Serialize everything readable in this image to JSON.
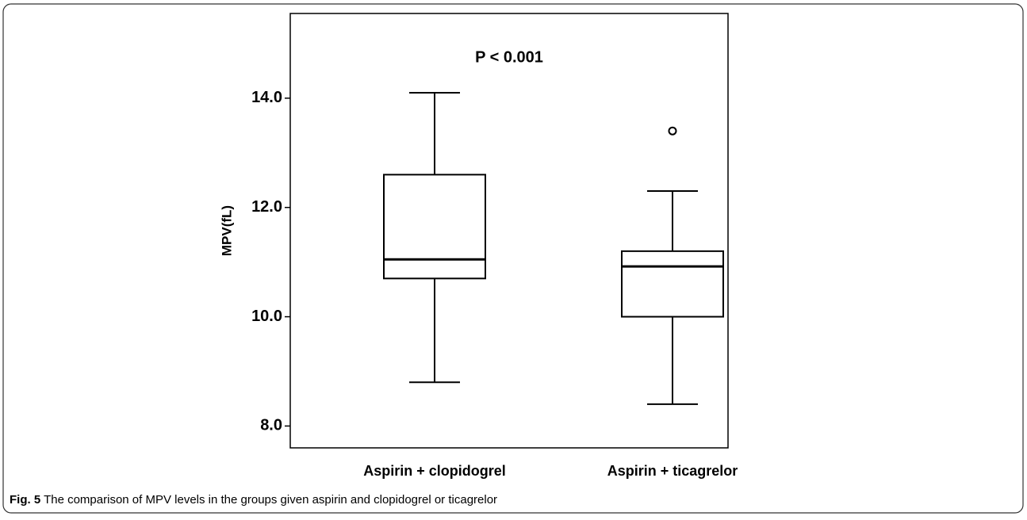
{
  "chart_data": {
    "type": "box",
    "title": "P < 0.001",
    "y_label": "MPV(fL)",
    "categories": [
      "Aspirin + clopidogrel",
      "Aspirin + ticagrelor"
    ],
    "boxes": [
      {
        "whislo": 8.8,
        "q1": 10.7,
        "med": 11.05,
        "q3": 12.6,
        "whishi": 14.1,
        "fliers": []
      },
      {
        "whislo": 8.4,
        "q1": 10.0,
        "med": 10.92,
        "q3": 11.2,
        "whishi": 12.3,
        "fliers": [
          13.4
        ]
      }
    ],
    "color": "#000000",
    "ylim": [
      7.6,
      15.55
    ],
    "yticks": [
      {
        "value": 8,
        "label": "8.0"
      },
      {
        "value": 10,
        "label": "10.0"
      },
      {
        "value": 12,
        "label": "12.0"
      },
      {
        "value": 14,
        "label": "14.0"
      }
    ]
  },
  "caption": {
    "label": "Fig. 5",
    "text": "The comparison of MPV levels in the groups given aspirin and clopidogrel or ticagrelor"
  }
}
